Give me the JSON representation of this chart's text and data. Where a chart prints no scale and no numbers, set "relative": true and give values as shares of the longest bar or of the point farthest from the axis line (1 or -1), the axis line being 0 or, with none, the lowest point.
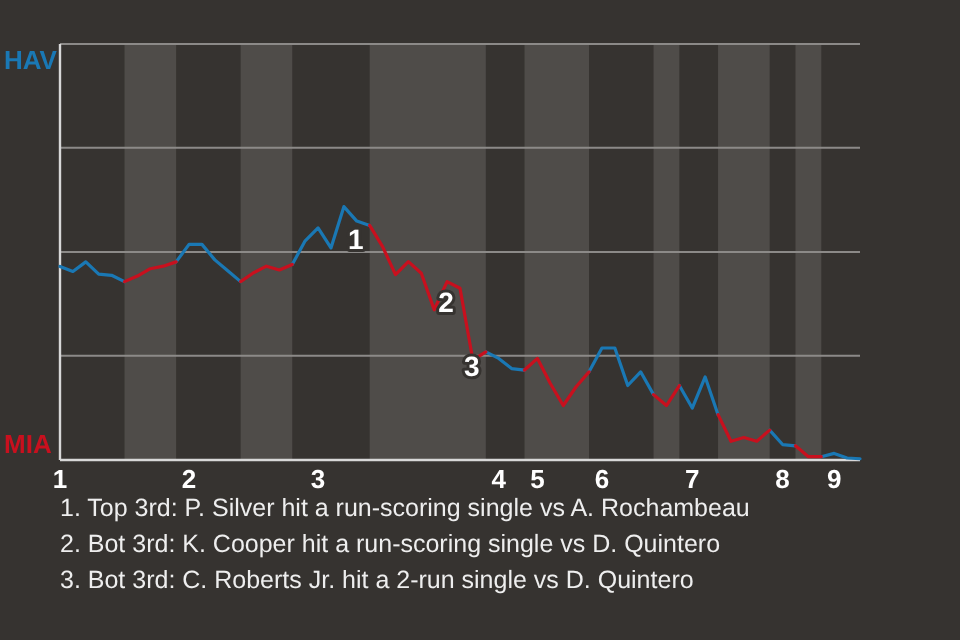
{
  "chart_data": {
    "type": "line",
    "relative": true,
    "categories": [
      "1",
      null,
      null,
      null,
      null,
      null,
      null,
      null,
      null,
      null,
      "2",
      null,
      null,
      null,
      null,
      null,
      null,
      null,
      null,
      null,
      "3",
      null,
      null,
      null,
      null,
      null,
      null,
      null,
      null,
      null,
      null,
      null,
      null,
      null,
      "4",
      null,
      null,
      "5",
      null,
      null,
      null,
      null,
      "6",
      null,
      null,
      null,
      null,
      null,
      null,
      "7",
      null,
      null,
      null,
      null,
      null,
      null,
      "8",
      null,
      null,
      null,
      "9",
      null,
      null
    ],
    "series": [
      {
        "name": "HAV",
        "color": "#1a78b4",
        "values": [
          0.764,
          0.744,
          0.782,
          0.734,
          0.729,
          0.704,
          null,
          null,
          null,
          0.782,
          0.851,
          0.851,
          0.79,
          0.747,
          0.704,
          null,
          null,
          null,
          0.772,
          0.865,
          0.916,
          0.837,
          1,
          0.943,
          0.926,
          null,
          null,
          null,
          null,
          null,
          null,
          null,
          null,
          0.427,
          0.401,
          0.361,
          0.355,
          null,
          null,
          null,
          null,
          0.348,
          0.442,
          0.442,
          0.294,
          0.348,
          0.258,
          null,
          0.294,
          0.205,
          0.328,
          0.179,
          null,
          null,
          null,
          0.118,
          0.061,
          0.056,
          null,
          0.013,
          0.026,
          0.008,
          0.005
        ]
      },
      {
        "name": "MIA",
        "color": "#c8101e",
        "values": [
          null,
          null,
          null,
          null,
          null,
          0.704,
          0.726,
          0.755,
          0.765,
          0.782,
          null,
          null,
          null,
          null,
          0.704,
          0.739,
          0.765,
          0.75,
          0.772,
          null,
          null,
          null,
          null,
          null,
          0.926,
          0.842,
          0.732,
          0.783,
          0.737,
          0.593,
          0.704,
          0.678,
          0.394,
          0.427,
          null,
          null,
          0.355,
          0.401,
          0.302,
          0.215,
          0.289,
          0.348,
          null,
          null,
          null,
          null,
          0.258,
          0.215,
          0.294,
          null,
          null,
          0.179,
          0.074,
          0.089,
          0.074,
          0.118,
          null,
          0.056,
          0.013,
          0.013,
          null,
          null,
          null
        ]
      }
    ],
    "marker": "none",
    "line_style": "solid",
    "ref_lines": [
      {
        "axis": "y",
        "value": 0.411,
        "color": "#8c8a88"
      },
      {
        "axis": "y",
        "value": 0.821,
        "color": "#8c8a88"
      },
      {
        "axis": "y",
        "value": 1.232,
        "color": "#8c8a88"
      },
      {
        "axis": "y",
        "value": 1.642,
        "color": "#8c8a88"
      }
    ],
    "annotations": [
      {
        "text": "1",
        "y": 0.926
      },
      {
        "text": "2",
        "y": 0.678
      },
      {
        "text": "3",
        "y": 0.427
      },
      "1. Top 3rd: P. Silver hit a run-scoring single vs A. Rochambeau",
      "2. Bot 3rd: K. Cooper hit a run-scoring single vs D. Quintero",
      "3. Bot 3rd: C. Roberts Jr. hit a 2-run single vs D. Quintero"
    ]
  }
}
